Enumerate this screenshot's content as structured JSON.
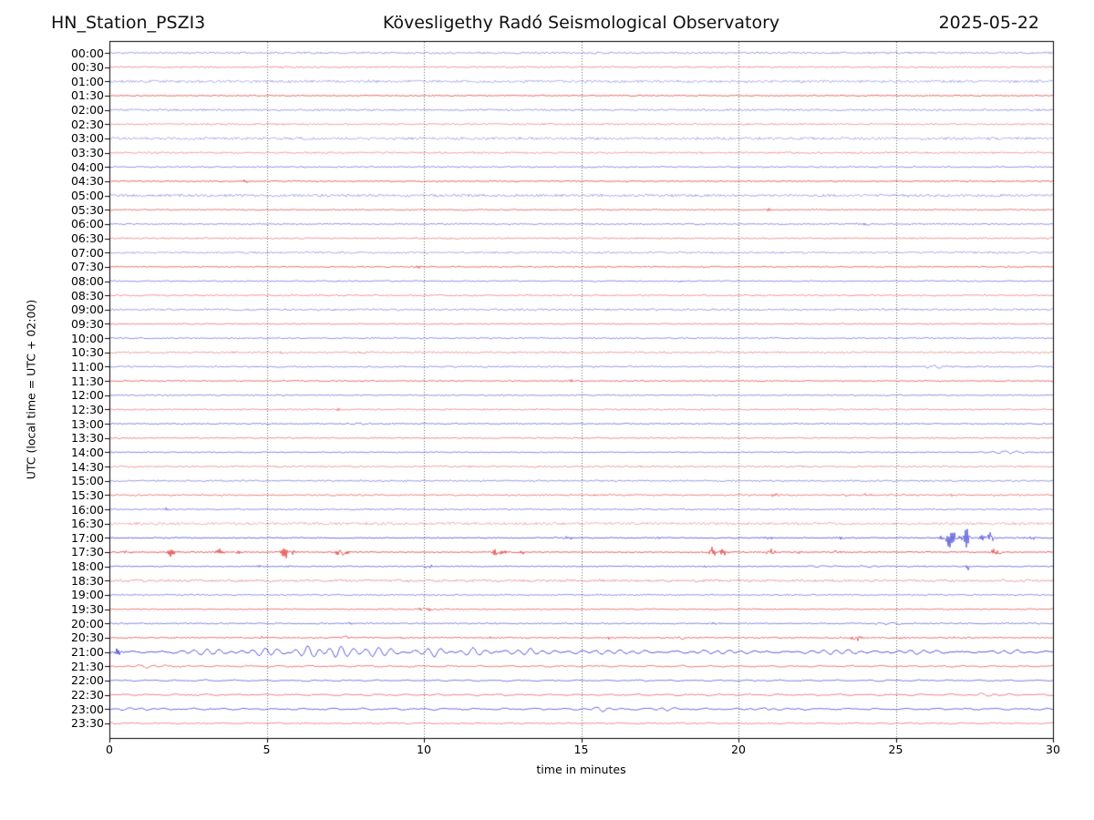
{
  "header": {
    "station": "HN_Station_PSZI3",
    "observatory": "Kövesligethy Radó Seismological Observatory",
    "date": "2025-05-22"
  },
  "axes": {
    "y_label": "UTC (local time = UTC + 02:00)",
    "x_label": "time in minutes",
    "x_ticks": [
      "0",
      "5",
      "10",
      "15",
      "20",
      "25",
      "30"
    ],
    "x_range": [
      0,
      30
    ],
    "grid_minutes": [
      5,
      10,
      15,
      20,
      25
    ],
    "grid_style": "dotted"
  },
  "style": {
    "trace_blue": "#1a1ace",
    "trace_red": "#dc1414",
    "grid_color": "#555555",
    "frame_color": "#000000",
    "text_color": "#000000",
    "background": "#ffffff"
  },
  "chart_data": {
    "type": "line",
    "subtype": "helicorder-seismogram",
    "minutes_per_line": 30,
    "line_interval": "00:30",
    "description": "48 alternating blue/red 30-minute trace lines, 00:00-23:30 UTC; events listed as [start_minute, amplitude_px, half_duration_min, kind] kind s=spiky burst, w=smooth wave packet",
    "rows": [
      {
        "label": "00:00",
        "color": "blue",
        "noise": 1.0,
        "alpha": 0.5,
        "wave": 0.15,
        "events": []
      },
      {
        "label": "00:30",
        "color": "red",
        "noise": 0.8,
        "alpha": 0.55,
        "wave": 0.1,
        "events": []
      },
      {
        "label": "01:00",
        "color": "blue",
        "noise": 1.4,
        "alpha": 0.4,
        "wave": 0.1,
        "events": []
      },
      {
        "label": "01:30",
        "color": "red",
        "noise": 0.6,
        "alpha": 0.8,
        "wave": 0.1,
        "events": [
          [
            13.7,
            1.4,
            0.15,
            "s"
          ],
          [
            16.8,
            1.7,
            0.15,
            "s"
          ]
        ]
      },
      {
        "label": "02:00",
        "color": "blue",
        "noise": 1.0,
        "alpha": 0.5,
        "wave": 0.1,
        "events": []
      },
      {
        "label": "02:30",
        "color": "red",
        "noise": 0.9,
        "alpha": 0.5,
        "wave": 0.1,
        "events": []
      },
      {
        "label": "03:00",
        "color": "blue",
        "noise": 1.4,
        "alpha": 0.4,
        "wave": 0.1,
        "events": []
      },
      {
        "label": "03:30",
        "color": "red",
        "noise": 0.9,
        "alpha": 0.5,
        "wave": 0.1,
        "events": []
      },
      {
        "label": "04:00",
        "color": "blue",
        "noise": 0.7,
        "alpha": 0.6,
        "wave": 0.1,
        "events": []
      },
      {
        "label": "04:30",
        "color": "red",
        "noise": 0.6,
        "alpha": 0.8,
        "wave": 0.1,
        "events": [
          [
            4.3,
            2.2,
            0.4,
            "s"
          ],
          [
            27.3,
            1.3,
            0.2,
            "s"
          ],
          [
            27.8,
            1.2,
            0.15,
            "s"
          ]
        ]
      },
      {
        "label": "05:00",
        "color": "blue",
        "noise": 1.3,
        "alpha": 0.45,
        "wave": 0.1,
        "events": [
          [
            4.2,
            1.8,
            0.7,
            "s"
          ],
          [
            25.5,
            1.2,
            0.3,
            "s"
          ]
        ]
      },
      {
        "label": "05:30",
        "color": "red",
        "noise": 0.7,
        "alpha": 0.7,
        "wave": 0.1,
        "events": [
          [
            21.0,
            1.6,
            0.5,
            "s"
          ]
        ]
      },
      {
        "label": "06:00",
        "color": "blue",
        "noise": 0.7,
        "alpha": 0.6,
        "wave": 0.1,
        "events": [
          [
            24.0,
            1.4,
            0.5,
            "s"
          ]
        ]
      },
      {
        "label": "06:30",
        "color": "red",
        "noise": 0.8,
        "alpha": 0.55,
        "wave": 0.1,
        "events": [
          [
            18.3,
            1.1,
            0.4,
            "s"
          ]
        ]
      },
      {
        "label": "07:00",
        "color": "blue",
        "noise": 1.0,
        "alpha": 0.45,
        "wave": 0.1,
        "events": []
      },
      {
        "label": "07:30",
        "color": "red",
        "noise": 0.6,
        "alpha": 0.75,
        "wave": 0.1,
        "events": [
          [
            9.9,
            1.8,
            0.5,
            "s"
          ]
        ]
      },
      {
        "label": "08:00",
        "color": "blue",
        "noise": 0.7,
        "alpha": 0.6,
        "wave": 0.1,
        "events": [
          [
            18.2,
            1.1,
            0.3,
            "s"
          ]
        ]
      },
      {
        "label": "08:30",
        "color": "red",
        "noise": 0.8,
        "alpha": 0.55,
        "wave": 0.1,
        "events": []
      },
      {
        "label": "09:00",
        "color": "blue",
        "noise": 1.0,
        "alpha": 0.5,
        "wave": 0.1,
        "events": [
          [
            19.5,
            1.1,
            0.6,
            "s"
          ]
        ]
      },
      {
        "label": "09:30",
        "color": "red",
        "noise": 0.7,
        "alpha": 0.6,
        "wave": 0.1,
        "events": []
      },
      {
        "label": "10:00",
        "color": "blue",
        "noise": 0.7,
        "alpha": 0.6,
        "wave": 0.1,
        "events": []
      },
      {
        "label": "10:30",
        "color": "red",
        "noise": 0.9,
        "alpha": 0.5,
        "wave": 0.1,
        "events": [
          [
            5.6,
            1.8,
            0.4,
            "s"
          ]
        ]
      },
      {
        "label": "11:00",
        "color": "blue",
        "noise": 0.8,
        "alpha": 0.55,
        "wave": 0.1,
        "events": [
          [
            26.3,
            1.3,
            0.8,
            "w"
          ]
        ]
      },
      {
        "label": "11:30",
        "color": "red",
        "noise": 0.6,
        "alpha": 0.75,
        "wave": 0.1,
        "events": [
          [
            14.65,
            3.4,
            0.12,
            "s"
          ]
        ]
      },
      {
        "label": "12:00",
        "color": "blue",
        "noise": 0.7,
        "alpha": 0.6,
        "wave": 0.1,
        "events": []
      },
      {
        "label": "12:30",
        "color": "red",
        "noise": 0.8,
        "alpha": 0.55,
        "wave": 0.1,
        "events": [
          [
            7.3,
            1.1,
            0.3,
            "s"
          ]
        ]
      },
      {
        "label": "13:00",
        "color": "blue",
        "noise": 0.6,
        "alpha": 0.65,
        "wave": 0.15,
        "events": [
          [
            8.0,
            1.1,
            0.6,
            "w"
          ]
        ]
      },
      {
        "label": "13:30",
        "color": "red",
        "noise": 0.7,
        "alpha": 0.6,
        "wave": 0.1,
        "events": []
      },
      {
        "label": "14:00",
        "color": "blue",
        "noise": 0.6,
        "alpha": 0.65,
        "wave": 0.1,
        "events": [
          [
            28.6,
            1.5,
            1.2,
            "w"
          ]
        ]
      },
      {
        "label": "14:30",
        "color": "red",
        "noise": 0.9,
        "alpha": 0.5,
        "wave": 0.1,
        "events": []
      },
      {
        "label": "15:00",
        "color": "blue",
        "noise": 0.8,
        "alpha": 0.55,
        "wave": 0.1,
        "events": []
      },
      {
        "label": "15:30",
        "color": "red",
        "noise": 0.8,
        "alpha": 0.65,
        "wave": 0.1,
        "events": [
          [
            21.2,
            2.6,
            0.35,
            "s"
          ],
          [
            23.3,
            1.8,
            0.3,
            "s"
          ],
          [
            24.1,
            1.6,
            0.25,
            "s"
          ],
          [
            26.8,
            1.2,
            0.2,
            "s"
          ],
          [
            27.6,
            1.1,
            0.2,
            "s"
          ]
        ]
      },
      {
        "label": "16:00",
        "color": "blue",
        "noise": 0.7,
        "alpha": 0.6,
        "wave": 0.1,
        "events": [
          [
            1.8,
            2.2,
            0.15,
            "s"
          ],
          [
            8.3,
            1.0,
            0.2,
            "s"
          ],
          [
            23.2,
            1.1,
            0.3,
            "s"
          ]
        ]
      },
      {
        "label": "16:30",
        "color": "red",
        "noise": 1.4,
        "alpha": 0.4,
        "wave": 0.1,
        "events": []
      },
      {
        "label": "17:00",
        "color": "blue",
        "noise": 0.6,
        "alpha": 0.8,
        "wave": 0.1,
        "events": [
          [
            14.6,
            2.0,
            0.3,
            "s"
          ],
          [
            17.5,
            1.6,
            0.3,
            "s"
          ],
          [
            20.9,
            2.0,
            0.4,
            "s"
          ],
          [
            23.2,
            1.4,
            0.5,
            "s"
          ],
          [
            26.8,
            12,
            0.5,
            "s"
          ],
          [
            27.25,
            22,
            0.15,
            "s"
          ],
          [
            27.9,
            8,
            0.4,
            "s"
          ],
          [
            29.3,
            2.6,
            0.3,
            "s"
          ]
        ]
      },
      {
        "label": "17:30",
        "color": "red",
        "noise": 0.6,
        "alpha": 0.85,
        "wave": 0.1,
        "events": [
          [
            0.5,
            1.6,
            0.7,
            "s"
          ],
          [
            2.0,
            5.5,
            0.4,
            "s"
          ],
          [
            3.5,
            3.0,
            0.3,
            "s"
          ],
          [
            4.1,
            3.0,
            0.25,
            "s"
          ],
          [
            5.65,
            6.5,
            0.35,
            "s"
          ],
          [
            7.4,
            5.5,
            0.35,
            "s"
          ],
          [
            12.35,
            7.0,
            0.35,
            "s"
          ],
          [
            13.1,
            2.0,
            0.25,
            "s"
          ],
          [
            19.35,
            8.0,
            0.45,
            "s"
          ],
          [
            21.0,
            3.5,
            0.35,
            "s"
          ],
          [
            21.9,
            2.5,
            0.3,
            "s"
          ],
          [
            23.1,
            2.0,
            0.3,
            "s"
          ],
          [
            28.2,
            4.5,
            0.35,
            "s"
          ]
        ]
      },
      {
        "label": "18:00",
        "color": "blue",
        "noise": 0.6,
        "alpha": 0.7,
        "wave": 0.1,
        "events": [
          [
            4.8,
            1.8,
            0.2,
            "s"
          ],
          [
            5.7,
            1.0,
            0.15,
            "s"
          ],
          [
            7.3,
            1.0,
            0.15,
            "s"
          ],
          [
            10.1,
            2.0,
            0.35,
            "s"
          ],
          [
            12.6,
            1.5,
            0.25,
            "s"
          ],
          [
            14.1,
            1.0,
            0.2,
            "s"
          ],
          [
            18.9,
            1.2,
            0.25,
            "s"
          ],
          [
            22.6,
            1.1,
            0.8,
            "w"
          ],
          [
            24.2,
            1.3,
            0.6,
            "w"
          ],
          [
            25.9,
            1.2,
            0.3,
            "s"
          ],
          [
            27.3,
            3.0,
            0.2,
            "s"
          ]
        ]
      },
      {
        "label": "18:30",
        "color": "red",
        "noise": 1.1,
        "alpha": 0.5,
        "wave": 0.5,
        "events": []
      },
      {
        "label": "19:00",
        "color": "blue",
        "noise": 0.7,
        "alpha": 0.6,
        "wave": 0.1,
        "events": []
      },
      {
        "label": "19:30",
        "color": "red",
        "noise": 0.7,
        "alpha": 0.7,
        "wave": 0.1,
        "events": [
          [
            10.0,
            2.2,
            0.6,
            "s"
          ]
        ]
      },
      {
        "label": "20:00",
        "color": "blue",
        "noise": 0.7,
        "alpha": 0.65,
        "wave": 0.1,
        "events": [
          [
            7.7,
            1.0,
            0.2,
            "s"
          ],
          [
            19.3,
            1.4,
            0.4,
            "s"
          ],
          [
            24.8,
            1.5,
            0.8,
            "w"
          ]
        ]
      },
      {
        "label": "20:30",
        "color": "red",
        "noise": 0.7,
        "alpha": 0.75,
        "wave": 0.1,
        "events": [
          [
            1.9,
            1.2,
            0.3,
            "s"
          ],
          [
            4.9,
            1.3,
            0.25,
            "s"
          ],
          [
            7.5,
            2.4,
            0.2,
            "s"
          ],
          [
            9.3,
            1.4,
            0.25,
            "s"
          ],
          [
            12.1,
            1.2,
            0.25,
            "s"
          ],
          [
            14.5,
            1.5,
            0.3,
            "s"
          ],
          [
            15.9,
            1.3,
            0.25,
            "s"
          ],
          [
            18.25,
            3.6,
            0.25,
            "s"
          ],
          [
            21.3,
            1.3,
            0.3,
            "s"
          ],
          [
            23.75,
            4.2,
            0.3,
            "s"
          ],
          [
            25.1,
            2.0,
            0.4,
            "s"
          ],
          [
            26.9,
            2.2,
            0.5,
            "s"
          ]
        ]
      },
      {
        "label": "21:00",
        "color": "blue",
        "noise": 0.5,
        "alpha": 0.9,
        "wave": 0.9,
        "events": [
          [
            0.2,
            5.5,
            0.25,
            "s"
          ],
          [
            3.2,
            3.5,
            1.5,
            "w"
          ],
          [
            5.0,
            5.0,
            1.2,
            "w"
          ],
          [
            6.3,
            6.5,
            1.0,
            "w"
          ],
          [
            7.3,
            7.5,
            0.9,
            "w"
          ],
          [
            8.6,
            5.5,
            1.1,
            "w"
          ],
          [
            10.3,
            5.0,
            1.0,
            "w"
          ],
          [
            11.6,
            4.0,
            1.2,
            "w"
          ],
          [
            13.4,
            3.5,
            1.5,
            "w"
          ],
          [
            16.0,
            2.5,
            2.0,
            "w"
          ],
          [
            19.5,
            2.2,
            2.0,
            "w"
          ],
          [
            23.0,
            2.8,
            1.5,
            "w"
          ],
          [
            25.5,
            2.0,
            2.0,
            "w"
          ],
          [
            28.5,
            1.8,
            1.5,
            "w"
          ]
        ]
      },
      {
        "label": "21:30",
        "color": "red",
        "noise": 0.6,
        "alpha": 0.7,
        "wave": 0.7,
        "events": [
          [
            1.3,
            1.5,
            1.2,
            "w"
          ]
        ]
      },
      {
        "label": "22:00",
        "color": "blue",
        "noise": 0.5,
        "alpha": 0.7,
        "wave": 0.6,
        "events": []
      },
      {
        "label": "22:30",
        "color": "red",
        "noise": 0.6,
        "alpha": 0.65,
        "wave": 0.8,
        "events": [
          [
            27.8,
            1.4,
            1.0,
            "w"
          ]
        ]
      },
      {
        "label": "23:00",
        "color": "blue",
        "noise": 0.5,
        "alpha": 0.8,
        "wave": 0.9,
        "events": [
          [
            1.0,
            1.5,
            1.0,
            "w"
          ],
          [
            15.7,
            2.2,
            1.0,
            "w"
          ],
          [
            17.6,
            1.6,
            0.8,
            "w"
          ],
          [
            21.0,
            1.3,
            1.5,
            "w"
          ]
        ]
      },
      {
        "label": "23:30",
        "color": "red",
        "noise": 0.7,
        "alpha": 0.6,
        "wave": 0.4,
        "events": []
      }
    ]
  }
}
